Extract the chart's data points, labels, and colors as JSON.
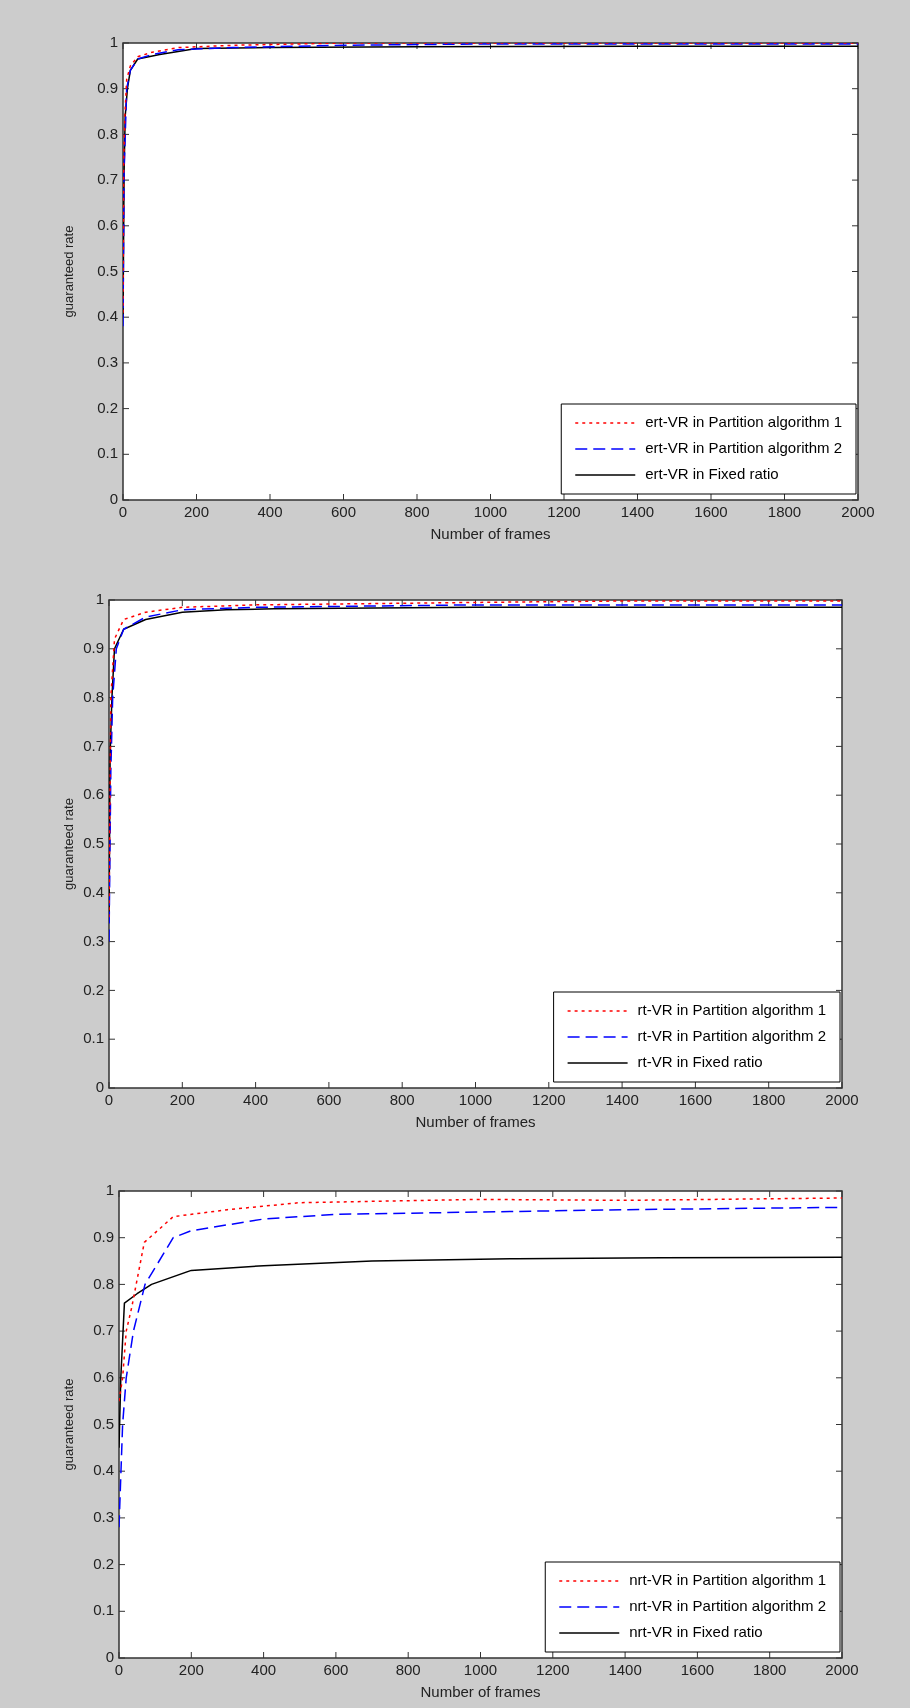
{
  "chart_data": [
    {
      "type": "line",
      "xlabel": "Number of frames",
      "ylabel": "guaranteed rate",
      "xlim": [
        0,
        2000
      ],
      "xticks": [
        0,
        200,
        400,
        600,
        800,
        1000,
        1200,
        1400,
        1600,
        1800,
        2000
      ],
      "ylim": [
        0,
        1
      ],
      "yticks": [
        0,
        0.1,
        0.2,
        0.3,
        0.4,
        0.5,
        0.6,
        0.7,
        0.8,
        0.9,
        1
      ],
      "grid": false,
      "legend": "bottom right",
      "marker": "none",
      "series": [
        {
          "name": "ert-VR in Partition algorithm 1",
          "color": "#ff0000",
          "line_style": "dotted",
          "x": [
            0,
            2,
            5,
            10,
            20,
            40,
            80,
            150,
            300,
            600,
            2000
          ],
          "values": [
            0.41,
            0.74,
            0.84,
            0.92,
            0.95,
            0.97,
            0.98,
            0.99,
            0.995,
            1,
            1
          ]
        },
        {
          "name": "ert-VR in Partition algorithm 2",
          "color": "#0000ff",
          "line_style": "dashed",
          "x": [
            0,
            3,
            10,
            20,
            40,
            80,
            150,
            300,
            600,
            1000,
            2000
          ],
          "values": [
            0.38,
            0.72,
            0.9,
            0.94,
            0.965,
            0.975,
            0.985,
            0.99,
            0.995,
            0.998,
            0.998
          ]
        },
        {
          "name": "ert-VR in Fixed ratio",
          "color": "#000000",
          "line_style": "solid",
          "x": [
            0,
            3,
            6,
            12,
            20,
            40,
            100,
            200,
            400,
            800,
            1400,
            2000
          ],
          "values": [
            0.4,
            0.72,
            0.84,
            0.9,
            0.94,
            0.965,
            0.975,
            0.988,
            0.99,
            0.992,
            0.993,
            0.993
          ]
        }
      ]
    },
    {
      "type": "line",
      "xlabel": "Number of frames",
      "ylabel": "guaranteed rate",
      "xlim": [
        0,
        2000
      ],
      "xticks": [
        0,
        200,
        400,
        600,
        800,
        1000,
        1200,
        1400,
        1600,
        1800,
        2000
      ],
      "ylim": [
        0,
        1
      ],
      "yticks": [
        0,
        0.1,
        0.2,
        0.3,
        0.4,
        0.5,
        0.6,
        0.7,
        0.8,
        0.9,
        1
      ],
      "grid": false,
      "legend": "bottom right",
      "marker": "none",
      "series": [
        {
          "name": "rt-VR in Partition algorithm 1",
          "color": "#ff0000",
          "line_style": "dotted",
          "x": [
            0,
            5,
            15,
            40,
            100,
            200,
            400,
            1000,
            1400,
            2000
          ],
          "values": [
            0.35,
            0.8,
            0.92,
            0.96,
            0.975,
            0.985,
            0.99,
            0.995,
            0.998,
            0.998
          ]
        },
        {
          "name": "rt-VR in Partition algorithm 2",
          "color": "#0000ff",
          "line_style": "dashed",
          "x": [
            0,
            5,
            10,
            20,
            40,
            100,
            200,
            400,
            1000,
            2000
          ],
          "values": [
            0.3,
            0.65,
            0.8,
            0.9,
            0.94,
            0.965,
            0.98,
            0.985,
            0.99,
            0.99
          ]
        },
        {
          "name": "rt-VR in Fixed ratio",
          "color": "#000000",
          "line_style": "solid",
          "x": [
            0,
            3,
            8,
            15,
            40,
            100,
            200,
            320,
            450,
            1000,
            2000
          ],
          "values": [
            0.34,
            0.68,
            0.8,
            0.9,
            0.94,
            0.96,
            0.975,
            0.98,
            0.982,
            0.985,
            0.985
          ]
        }
      ]
    },
    {
      "type": "line",
      "xlabel": "Number of frames",
      "ylabel": "guaranteed rate",
      "xlim": [
        0,
        2000
      ],
      "xticks": [
        0,
        200,
        400,
        600,
        800,
        1000,
        1200,
        1400,
        1600,
        1800,
        2000
      ],
      "ylim": [
        0,
        1
      ],
      "yticks": [
        0,
        0.1,
        0.2,
        0.3,
        0.4,
        0.5,
        0.6,
        0.7,
        0.8,
        0.9,
        1
      ],
      "grid": false,
      "legend": "bottom right",
      "marker": "none",
      "series": [
        {
          "name": "nrt-VR in Partition algorithm 1",
          "color": "#ff0000",
          "line_style": "dotted",
          "x": [
            0,
            10,
            20,
            35,
            70,
            150,
            300,
            500,
            1000,
            1400,
            2000
          ],
          "values": [
            0.55,
            0.6,
            0.7,
            0.75,
            0.89,
            0.945,
            0.96,
            0.975,
            0.982,
            0.98,
            0.985
          ]
        },
        {
          "name": "nrt-VR in Partition algorithm 2",
          "color": "#0000ff",
          "line_style": "dashed",
          "x": [
            0,
            10,
            20,
            40,
            72,
            150,
            200,
            400,
            600,
            1000,
            1400,
            2000
          ],
          "values": [
            0.28,
            0.5,
            0.6,
            0.7,
            0.8,
            0.9,
            0.915,
            0.94,
            0.95,
            0.955,
            0.96,
            0.965
          ]
        },
        {
          "name": "nrt-VR in Fixed ratio",
          "color": "#000000",
          "line_style": "solid",
          "x": [
            0,
            5,
            15,
            50,
            90,
            200,
            400,
            700,
            1100,
            1500,
            2000
          ],
          "values": [
            0.45,
            0.6,
            0.76,
            0.78,
            0.8,
            0.83,
            0.84,
            0.85,
            0.855,
            0.857,
            0.858
          ]
        }
      ]
    }
  ]
}
